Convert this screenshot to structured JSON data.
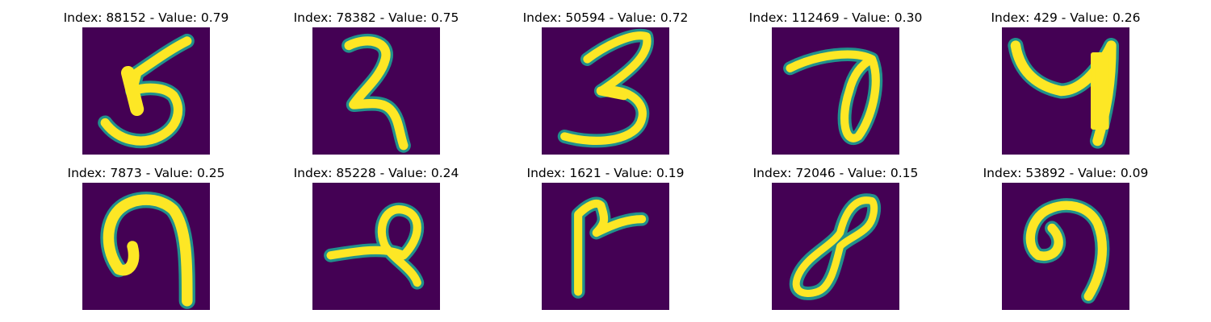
{
  "panels": [
    {
      "title": "Index: 88152 - Value: 0.79",
      "digit_icon": "digit-5-icon"
    },
    {
      "title": "Index: 78382 - Value: 0.75",
      "digit_icon": "digit-2-icon"
    },
    {
      "title": "Index: 50594 - Value: 0.72",
      "digit_icon": "digit-3-icon"
    },
    {
      "title": "Index: 112469 - Value: 0.30",
      "digit_icon": "digit-7-icon"
    },
    {
      "title": "Index: 429 - Value: 0.26",
      "digit_icon": "digit-4-icon"
    },
    {
      "title": "Index: 7873 - Value: 0.25",
      "digit_icon": "digit-n-shape-icon"
    },
    {
      "title": "Index: 85228 - Value: 0.24",
      "digit_icon": "digit-loop-icon"
    },
    {
      "title": "Index: 1621 - Value: 0.19",
      "digit_icon": "digit-7-rotated-icon"
    },
    {
      "title": "Index: 72046 - Value: 0.15",
      "digit_icon": "digit-8-icon"
    },
    {
      "title": "Index: 53892 - Value: 0.09",
      "digit_icon": "digit-hook-icon"
    }
  ],
  "colors": {
    "background": "#440154",
    "stroke_edge": "#21918c",
    "stroke_core": "#fde725"
  }
}
